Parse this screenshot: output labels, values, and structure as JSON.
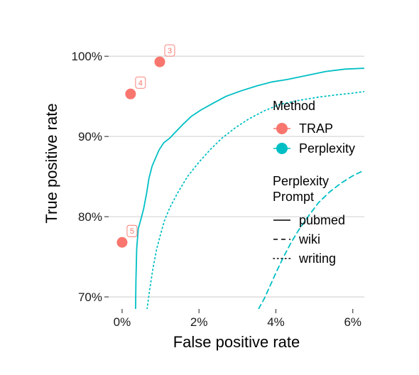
{
  "chart_data": {
    "type": "scatter",
    "xlabel": "False positive rate",
    "ylabel": "True positive rate",
    "xlim": [
      -0.35,
      6.3
    ],
    "ylim": [
      68.5,
      104
    ],
    "x_ticks": [
      {
        "value": 0,
        "label": "0%"
      },
      {
        "value": 2,
        "label": "2%"
      },
      {
        "value": 4,
        "label": "4%"
      },
      {
        "value": 6,
        "label": "6%"
      }
    ],
    "y_ticks": [
      {
        "value": 70,
        "label": "70%"
      },
      {
        "value": 80,
        "label": "80%"
      },
      {
        "value": 90,
        "label": "90%"
      },
      {
        "value": 100,
        "label": "100%"
      }
    ],
    "grid": "horizontal major",
    "colors": {
      "TRAP": "#F8766D",
      "Perplexity": "#00BFC4",
      "grid": "#d9d9d9"
    },
    "points": [
      {
        "series": "TRAP",
        "x": 0.98,
        "y": 99.3,
        "label": "3"
      },
      {
        "series": "TRAP",
        "x": 0.22,
        "y": 95.3,
        "label": "4"
      },
      {
        "series": "TRAP",
        "x": 0.0,
        "y": 76.8,
        "label": "5"
      }
    ],
    "lines": [
      {
        "series": "Perplexity",
        "prompt": "pubmed",
        "style": "solid",
        "x": [
          0.35,
          0.36,
          0.38,
          0.42,
          0.48,
          0.56,
          0.64,
          0.7,
          0.78,
          0.86,
          0.96,
          1.08,
          1.24,
          1.4,
          1.58,
          1.8,
          2.05,
          2.35,
          2.7,
          3.1,
          3.5,
          3.9,
          4.3,
          4.8,
          5.3,
          5.8,
          6.3
        ],
        "y": [
          68.5,
          72,
          76,
          78.5,
          79.5,
          81,
          83,
          84.8,
          86.3,
          87.2,
          88.3,
          89.2,
          89.8,
          90.6,
          91.5,
          92.5,
          93.3,
          94.1,
          95.0,
          95.7,
          96.3,
          96.8,
          97.1,
          97.6,
          98.1,
          98.4,
          98.5
        ]
      },
      {
        "series": "Perplexity",
        "prompt": "wiki",
        "style": "dashed",
        "x": [
          3.55,
          3.7,
          3.85,
          4.0,
          4.2,
          4.4,
          4.6,
          4.85,
          5.1,
          5.4,
          5.7,
          6.0,
          6.3
        ],
        "y": [
          68.5,
          69.8,
          71.4,
          73,
          75,
          76.8,
          78.4,
          80.1,
          81.7,
          83.1,
          84.2,
          85.1,
          85.8
        ]
      },
      {
        "series": "Perplexity",
        "prompt": "writing",
        "style": "dotted",
        "x": [
          0.65,
          0.72,
          0.8,
          0.9,
          1.0,
          1.1,
          1.25,
          1.45,
          1.7,
          2.0,
          2.3,
          2.6,
          2.95,
          3.3,
          3.7,
          4.1,
          4.6,
          5.1,
          5.6,
          6.0,
          6.3
        ],
        "y": [
          68.5,
          71,
          73.5,
          76,
          77.8,
          79.5,
          81.2,
          83,
          85,
          86.8,
          88.4,
          89.8,
          91.1,
          92.2,
          93.2,
          94.0,
          94.5,
          94.9,
          95.2,
          95.4,
          95.6
        ]
      }
    ],
    "legend": {
      "placement": "right",
      "method_title": "Method",
      "method_items": [
        "TRAP",
        "Perplexity"
      ],
      "prompt_title_line1": "Perplexity",
      "prompt_title_line2": "Prompt",
      "prompt_items": [
        {
          "label": "pubmed",
          "style": "solid"
        },
        {
          "label": "wiki",
          "style": "dashed"
        },
        {
          "label": "writing",
          "style": "dotted"
        }
      ]
    }
  }
}
